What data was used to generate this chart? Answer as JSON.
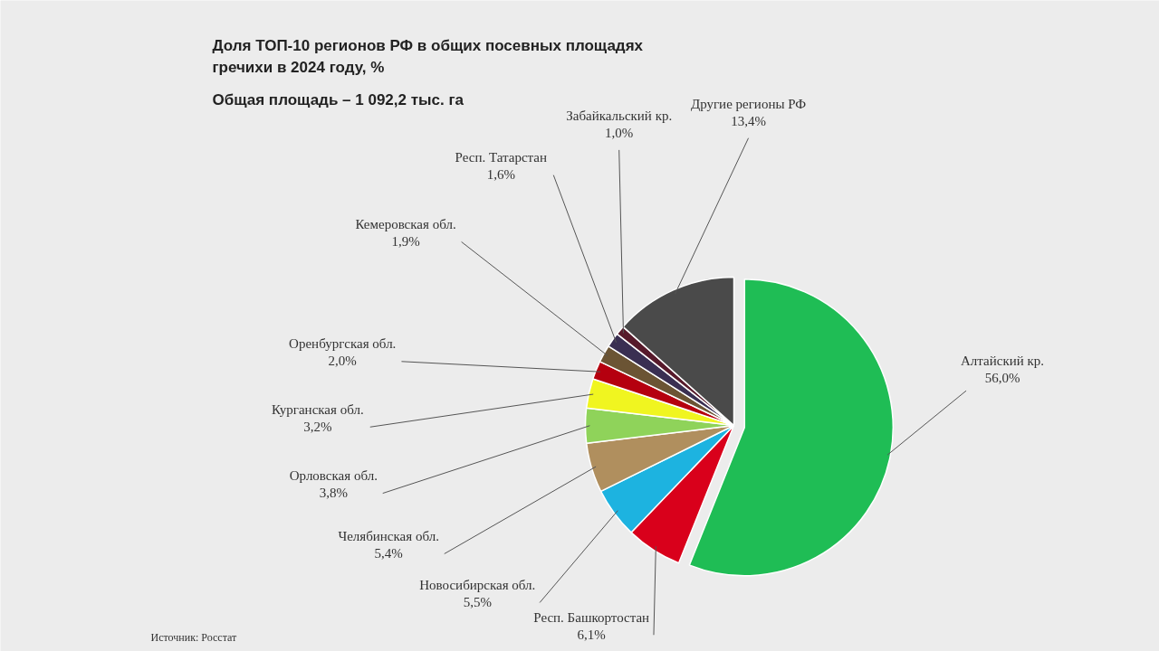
{
  "chart_data": {
    "type": "pie",
    "title": "Доля ТОП-10 регионов РФ в общих посевных площадях\nгречихи в 2024 году, %",
    "subtitle": "Общая площадь – 1 092,2 тыс. га",
    "categories": [
      "Алтайский кр.",
      "Респ. Башкортостан",
      "Новосибирская обл.",
      "Челябинская обл.",
      "Орловская обл.",
      "Курганская обл.",
      "Оренбургская обл.",
      "Кемеровская обл.",
      "Респ. Татарстан",
      "Забайкальский кр.",
      "Другие регионы РФ"
    ],
    "values": [
      56.0,
      6.1,
      5.5,
      5.4,
      3.8,
      3.2,
      2.0,
      1.9,
      1.6,
      1.0,
      13.4
    ],
    "value_labels": [
      "56,0%",
      "6,1%",
      "5,5%",
      "5,4%",
      "3,8%",
      "3,2%",
      "2,0%",
      "1,9%",
      "1,6%",
      "1,0%",
      "13,4%"
    ],
    "colors": [
      "#1fbd55",
      "#d9001b",
      "#1db3e0",
      "#b08f5e",
      "#8fd35a",
      "#f0f520",
      "#b5000f",
      "#6b5434",
      "#3a2f52",
      "#571a2b",
      "#4a4a4a"
    ],
    "annotations": [
      "Источник: Росстат"
    ]
  }
}
